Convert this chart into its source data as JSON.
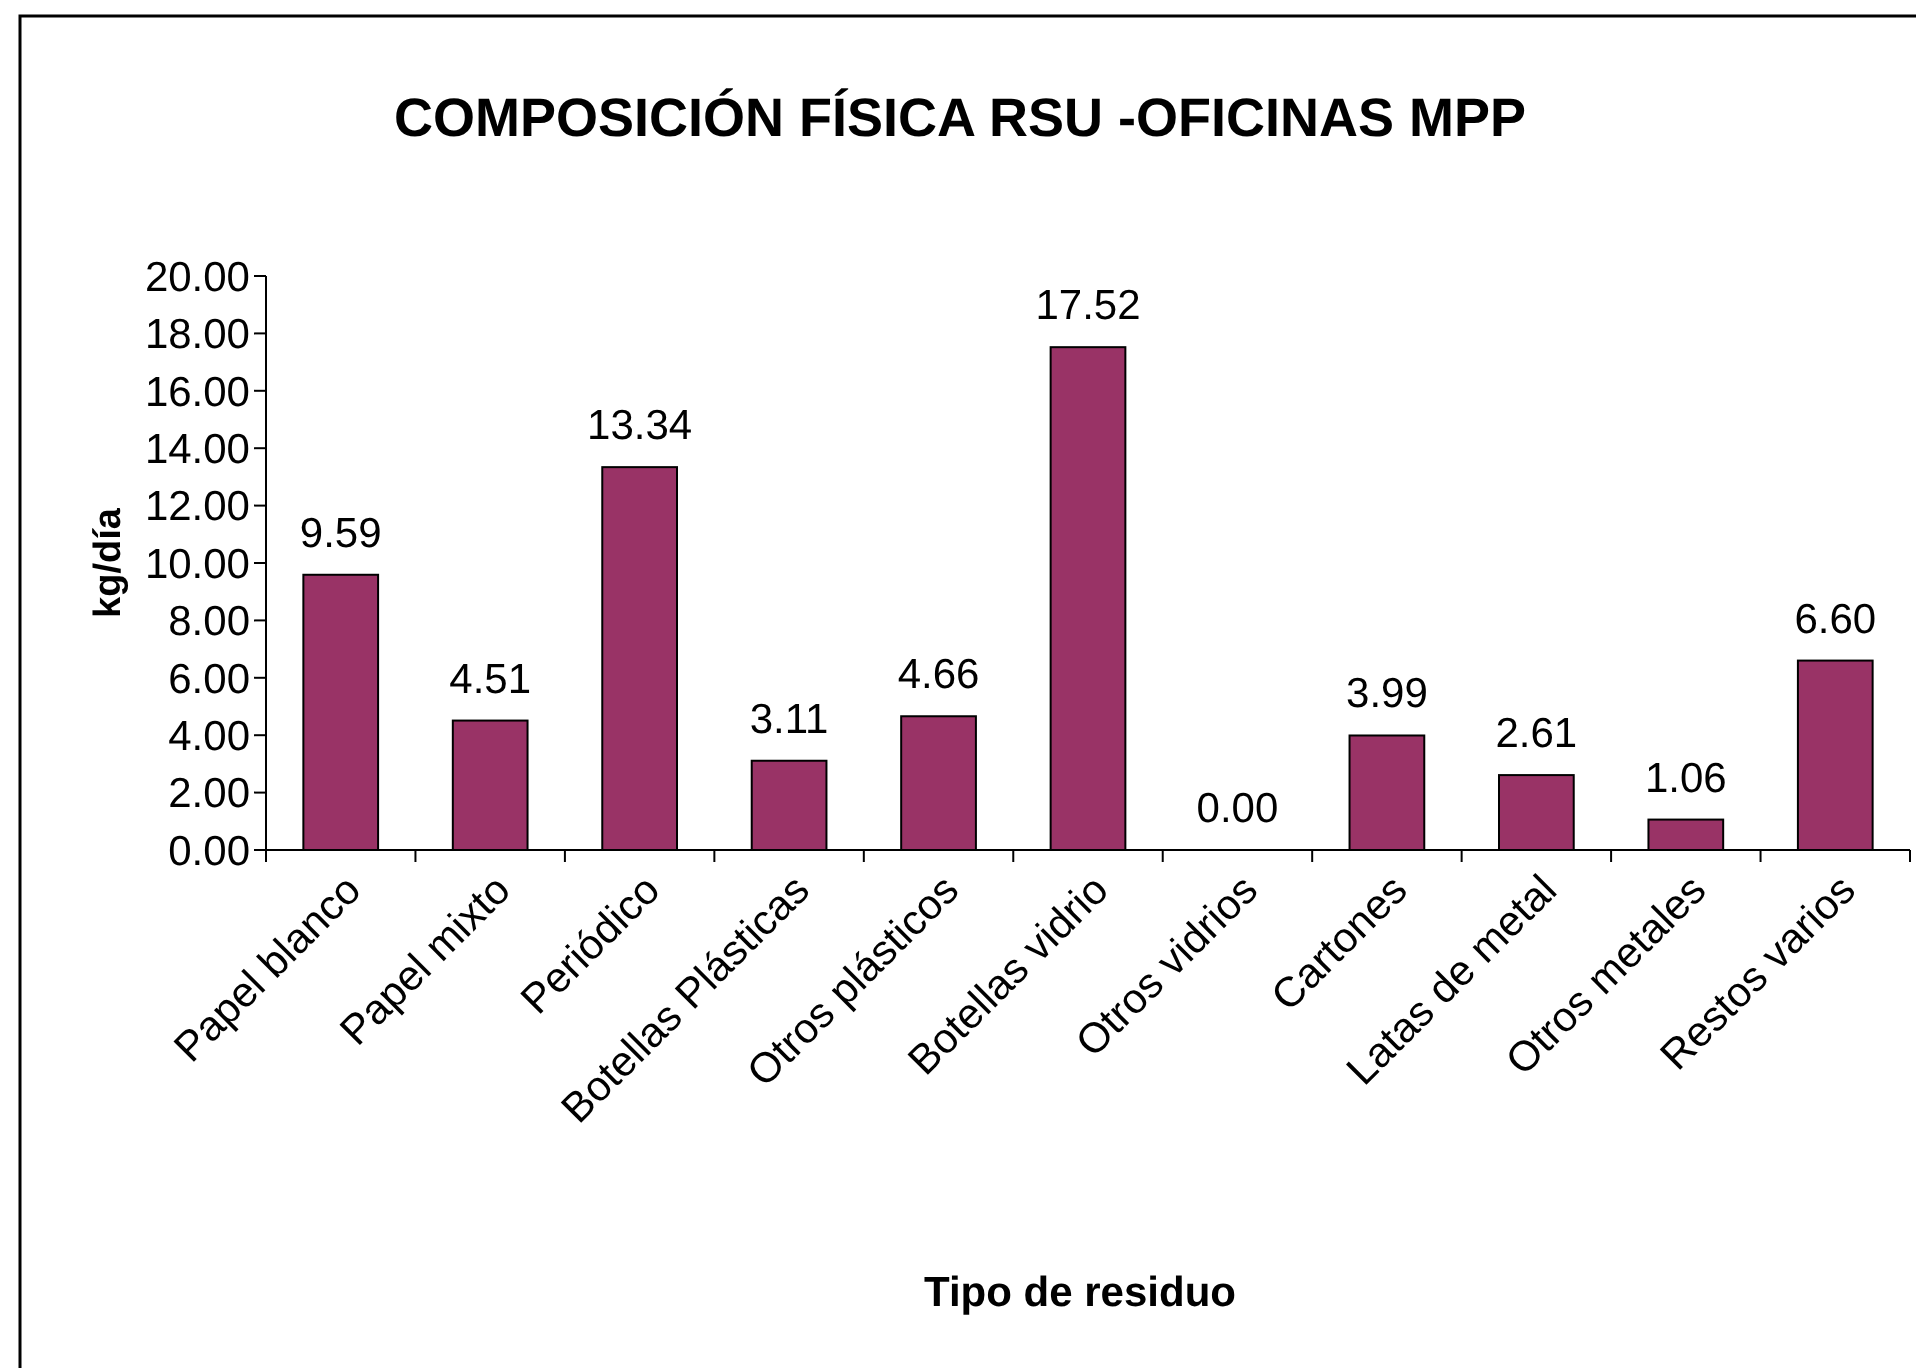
{
  "chart_data": {
    "type": "bar",
    "title": "COMPOSICIÓN FÍSICA RSU -OFICINAS MPP",
    "xlabel": "Tipo de residuo",
    "ylabel": "kg/día",
    "categories": [
      "Papel blanco",
      "Papel mixto",
      "Periódico",
      "Botellas Plásticas",
      "Otros plásticos",
      "Botellas vidrio",
      "Otros vidrios",
      "Cartones",
      "Latas de metal",
      "Otros metales",
      "Restos varios"
    ],
    "values": [
      9.59,
      4.51,
      13.34,
      3.11,
      4.66,
      17.52,
      0.0,
      3.99,
      2.61,
      1.06,
      6.6
    ],
    "value_labels": [
      "9.59",
      "4.51",
      "13.34",
      "3.11",
      "4.66",
      "17.52",
      "0.00",
      "3.99",
      "2.61",
      "1.06",
      "6.60"
    ],
    "color": "#993366",
    "ylim": [
      0,
      20
    ],
    "yticks": [
      {
        "value": 0,
        "label": "0.00"
      },
      {
        "value": 2,
        "label": "2.00"
      },
      {
        "value": 4,
        "label": "4.00"
      },
      {
        "value": 6,
        "label": "6.00"
      },
      {
        "value": 8,
        "label": "8.00"
      },
      {
        "value": 10,
        "label": "10.00"
      },
      {
        "value": 12,
        "label": "12.00"
      },
      {
        "value": 14,
        "label": "14.00"
      },
      {
        "value": 16,
        "label": "16.00"
      },
      {
        "value": 18,
        "label": "18.00"
      },
      {
        "value": 20,
        "label": "20.00"
      }
    ],
    "grid": false
  }
}
